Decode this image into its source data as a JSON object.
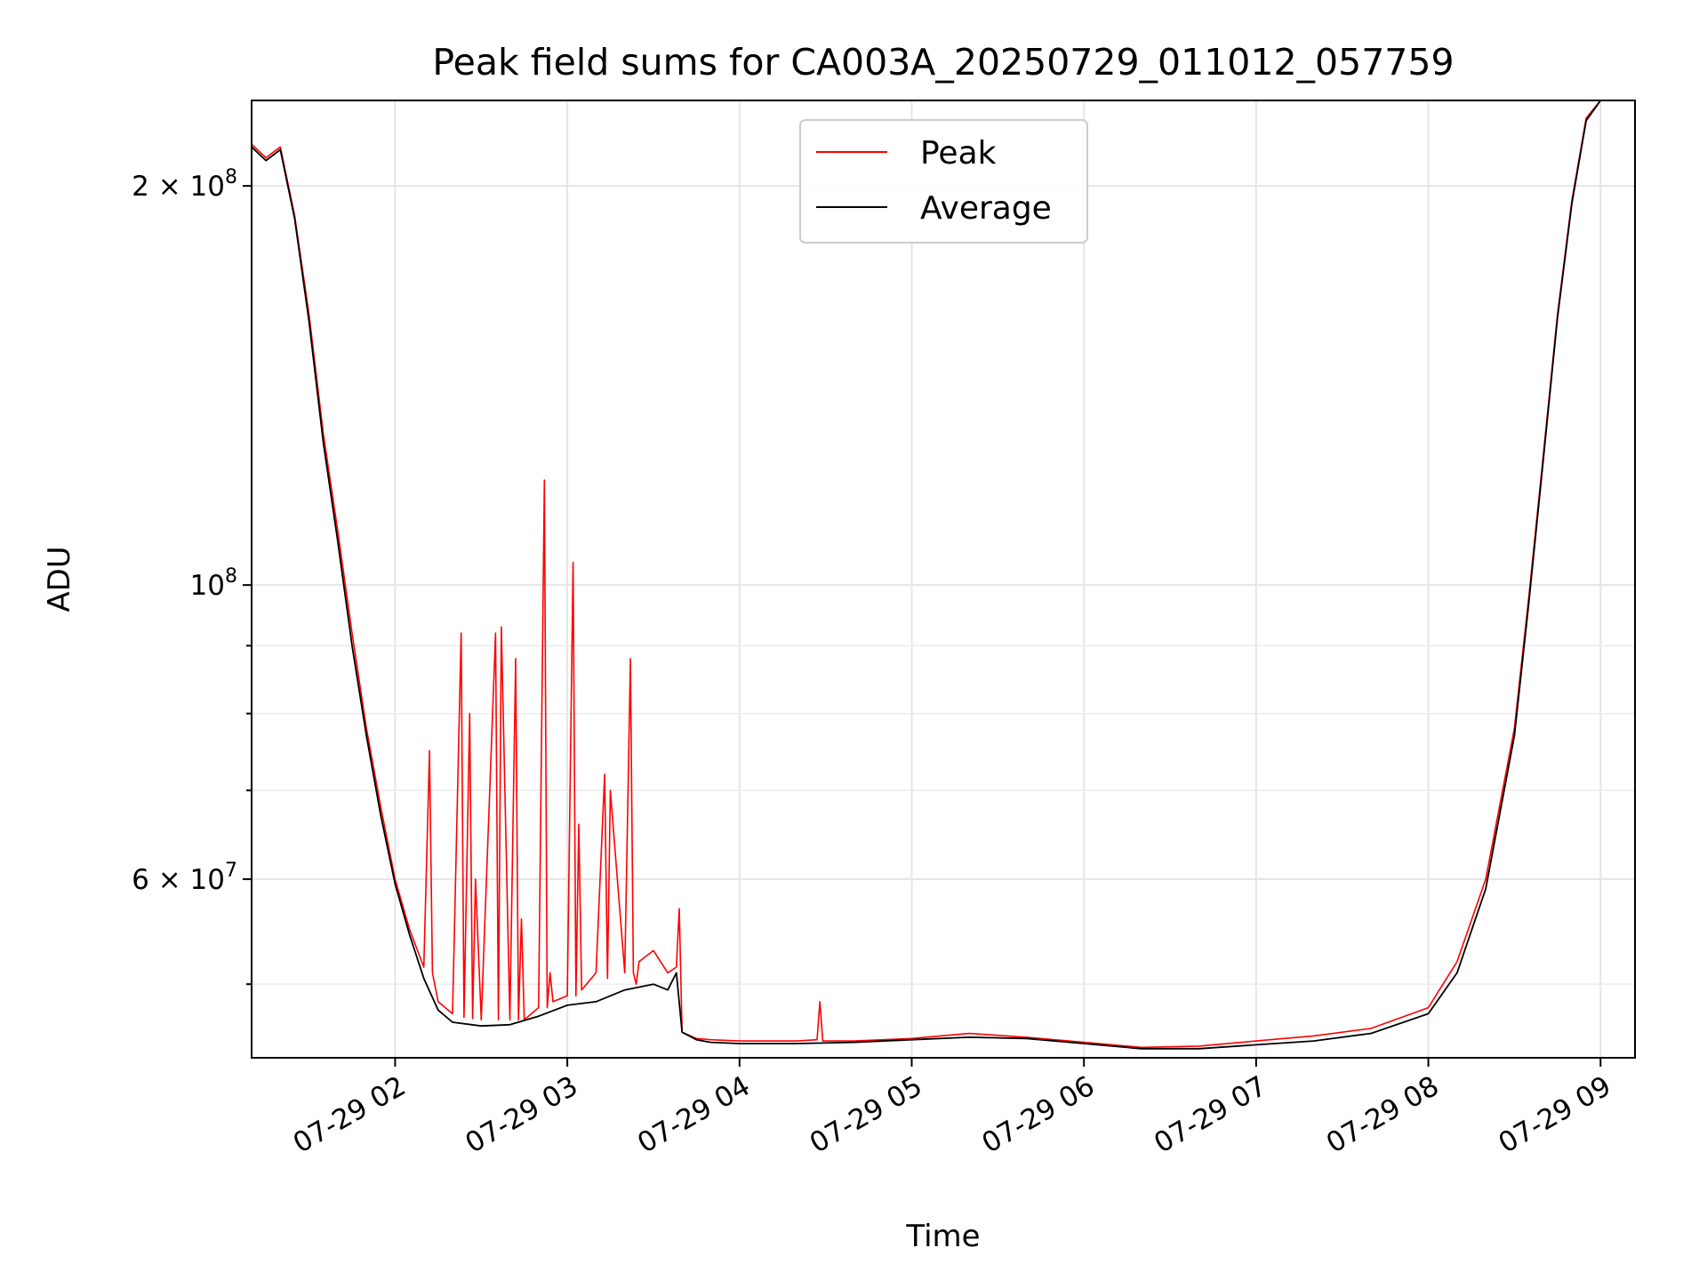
{
  "chart_data": {
    "type": "line",
    "title": "Peak field sums for CA003A_20250729_011012_057759",
    "xlabel": "Time",
    "ylabel": "ADU",
    "yscale": "log",
    "xlim": [
      "2025-07-29T01:10",
      "2025-07-29T09:12"
    ],
    "ylim": [
      44000000,
      232000000
    ],
    "grid": true,
    "legend": "upper-center",
    "x_ticks": [
      {
        "value": "2025-07-29T02:00",
        "label": "07-29 02"
      },
      {
        "value": "2025-07-29T03:00",
        "label": "07-29 03"
      },
      {
        "value": "2025-07-29T04:00",
        "label": "07-29 04"
      },
      {
        "value": "2025-07-29T05:00",
        "label": "07-29 05"
      },
      {
        "value": "2025-07-29T06:00",
        "label": "07-29 06"
      },
      {
        "value": "2025-07-29T07:00",
        "label": "07-29 07"
      },
      {
        "value": "2025-07-29T08:00",
        "label": "07-29 08"
      },
      {
        "value": "2025-07-29T09:00",
        "label": "07-29 09"
      }
    ],
    "y_major_ticks": [
      {
        "value": 60000000,
        "mantissa": "6",
        "base": "10",
        "exp": "7"
      },
      {
        "value": 100000000,
        "mantissa": "",
        "base": "10",
        "exp": "8"
      },
      {
        "value": 200000000,
        "mantissa": "2",
        "base": "10",
        "exp": "8"
      }
    ],
    "y_minor_ticks": [
      50000000,
      70000000,
      80000000,
      90000000
    ],
    "series": [
      {
        "name": "Peak",
        "color": "#ff0000",
        "x": [
          "2025-07-29T01:10",
          "2025-07-29T01:15",
          "2025-07-29T01:20",
          "2025-07-29T01:25",
          "2025-07-29T01:30",
          "2025-07-29T01:35",
          "2025-07-29T01:40",
          "2025-07-29T01:45",
          "2025-07-29T01:50",
          "2025-07-29T01:55",
          "2025-07-29T02:00",
          "2025-07-29T02:05",
          "2025-07-29T02:10",
          "2025-07-29T02:12",
          "2025-07-29T02:13",
          "2025-07-29T02:15",
          "2025-07-29T02:20",
          "2025-07-29T02:23",
          "2025-07-29T02:24",
          "2025-07-29T02:26",
          "2025-07-29T02:27",
          "2025-07-29T02:28",
          "2025-07-29T02:30",
          "2025-07-29T02:35",
          "2025-07-29T02:36",
          "2025-07-29T02:37",
          "2025-07-29T02:40",
          "2025-07-29T02:42",
          "2025-07-29T02:43",
          "2025-07-29T02:44",
          "2025-07-29T02:45",
          "2025-07-29T02:50",
          "2025-07-29T02:52",
          "2025-07-29T02:53",
          "2025-07-29T02:54",
          "2025-07-29T02:55",
          "2025-07-29T03:00",
          "2025-07-29T03:02",
          "2025-07-29T03:03",
          "2025-07-29T03:04",
          "2025-07-29T03:05",
          "2025-07-29T03:10",
          "2025-07-29T03:13",
          "2025-07-29T03:14",
          "2025-07-29T03:15",
          "2025-07-29T03:20",
          "2025-07-29T03:22",
          "2025-07-29T03:23",
          "2025-07-29T03:24",
          "2025-07-29T03:25",
          "2025-07-29T03:30",
          "2025-07-29T03:35",
          "2025-07-29T03:38",
          "2025-07-29T03:39",
          "2025-07-29T03:40",
          "2025-07-29T03:45",
          "2025-07-29T03:50",
          "2025-07-29T04:00",
          "2025-07-29T04:10",
          "2025-07-29T04:20",
          "2025-07-29T04:27",
          "2025-07-29T04:28",
          "2025-07-29T04:29",
          "2025-07-29T04:40",
          "2025-07-29T05:00",
          "2025-07-29T05:20",
          "2025-07-29T05:40",
          "2025-07-29T06:00",
          "2025-07-29T06:20",
          "2025-07-29T06:40",
          "2025-07-29T07:00",
          "2025-07-29T07:20",
          "2025-07-29T07:40",
          "2025-07-29T08:00",
          "2025-07-29T08:10",
          "2025-07-29T08:20",
          "2025-07-29T08:30",
          "2025-07-29T08:35",
          "2025-07-29T08:40",
          "2025-07-29T08:45",
          "2025-07-29T08:50",
          "2025-07-29T08:55",
          "2025-07-29T09:00"
        ],
        "y": [
          215000000,
          210000000,
          214000000,
          190000000,
          160000000,
          130000000,
          110000000,
          92000000,
          78000000,
          68000000,
          60000000,
          55000000,
          51500000,
          75000000,
          51000000,
          48500000,
          47500000,
          92000000,
          47200000,
          80000000,
          47100000,
          60000000,
          47000000,
          92000000,
          47000000,
          93000000,
          47000000,
          88000000,
          47000000,
          56000000,
          47000000,
          48000000,
          120000000,
          48000000,
          51000000,
          48500000,
          49000000,
          104000000,
          49000000,
          66000000,
          49500000,
          51000000,
          72000000,
          50500000,
          70000000,
          51000000,
          88000000,
          51000000,
          50000000,
          52000000,
          53000000,
          51000000,
          51500000,
          57000000,
          46000000,
          45500000,
          45400000,
          45300000,
          45300000,
          45300000,
          45400000,
          48500000,
          45300000,
          45300000,
          45500000,
          45900000,
          45600000,
          45200000,
          44800000,
          44900000,
          45300000,
          45700000,
          46300000,
          48000000,
          52000000,
          60000000,
          78000000,
          98000000,
          125000000,
          160000000,
          195000000,
          225000000,
          232000000
        ]
      },
      {
        "name": "Average",
        "color": "#000000",
        "x": [
          "2025-07-29T01:10",
          "2025-07-29T01:15",
          "2025-07-29T01:20",
          "2025-07-29T01:25",
          "2025-07-29T01:30",
          "2025-07-29T01:35",
          "2025-07-29T01:40",
          "2025-07-29T01:45",
          "2025-07-29T01:50",
          "2025-07-29T01:55",
          "2025-07-29T02:00",
          "2025-07-29T02:05",
          "2025-07-29T02:10",
          "2025-07-29T02:15",
          "2025-07-29T02:20",
          "2025-07-29T02:30",
          "2025-07-29T02:40",
          "2025-07-29T02:50",
          "2025-07-29T03:00",
          "2025-07-29T03:10",
          "2025-07-29T03:20",
          "2025-07-29T03:30",
          "2025-07-29T03:35",
          "2025-07-29T03:38",
          "2025-07-29T03:40",
          "2025-07-29T03:45",
          "2025-07-29T03:50",
          "2025-07-29T04:00",
          "2025-07-29T04:20",
          "2025-07-29T04:40",
          "2025-07-29T05:00",
          "2025-07-29T05:20",
          "2025-07-29T05:40",
          "2025-07-29T06:00",
          "2025-07-29T06:20",
          "2025-07-29T06:40",
          "2025-07-29T07:00",
          "2025-07-29T07:20",
          "2025-07-29T07:40",
          "2025-07-29T08:00",
          "2025-07-29T08:10",
          "2025-07-29T08:20",
          "2025-07-29T08:30",
          "2025-07-29T08:35",
          "2025-07-29T08:40",
          "2025-07-29T08:45",
          "2025-07-29T08:50",
          "2025-07-29T08:55",
          "2025-07-29T09:00"
        ],
        "y": [
          214000000,
          209000000,
          213000000,
          189000000,
          158000000,
          128000000,
          108000000,
          90000000,
          77000000,
          67000000,
          59500000,
          54500000,
          50500000,
          47800000,
          46800000,
          46500000,
          46600000,
          47300000,
          48200000,
          48500000,
          49500000,
          50000000,
          49500000,
          51000000,
          46000000,
          45400000,
          45200000,
          45100000,
          45100000,
          45200000,
          45400000,
          45600000,
          45500000,
          45100000,
          44700000,
          44700000,
          45000000,
          45300000,
          45900000,
          47500000,
          51000000,
          59000000,
          77000000,
          97000000,
          124000000,
          159000000,
          194000000,
          224000000,
          232000000
        ]
      }
    ]
  }
}
